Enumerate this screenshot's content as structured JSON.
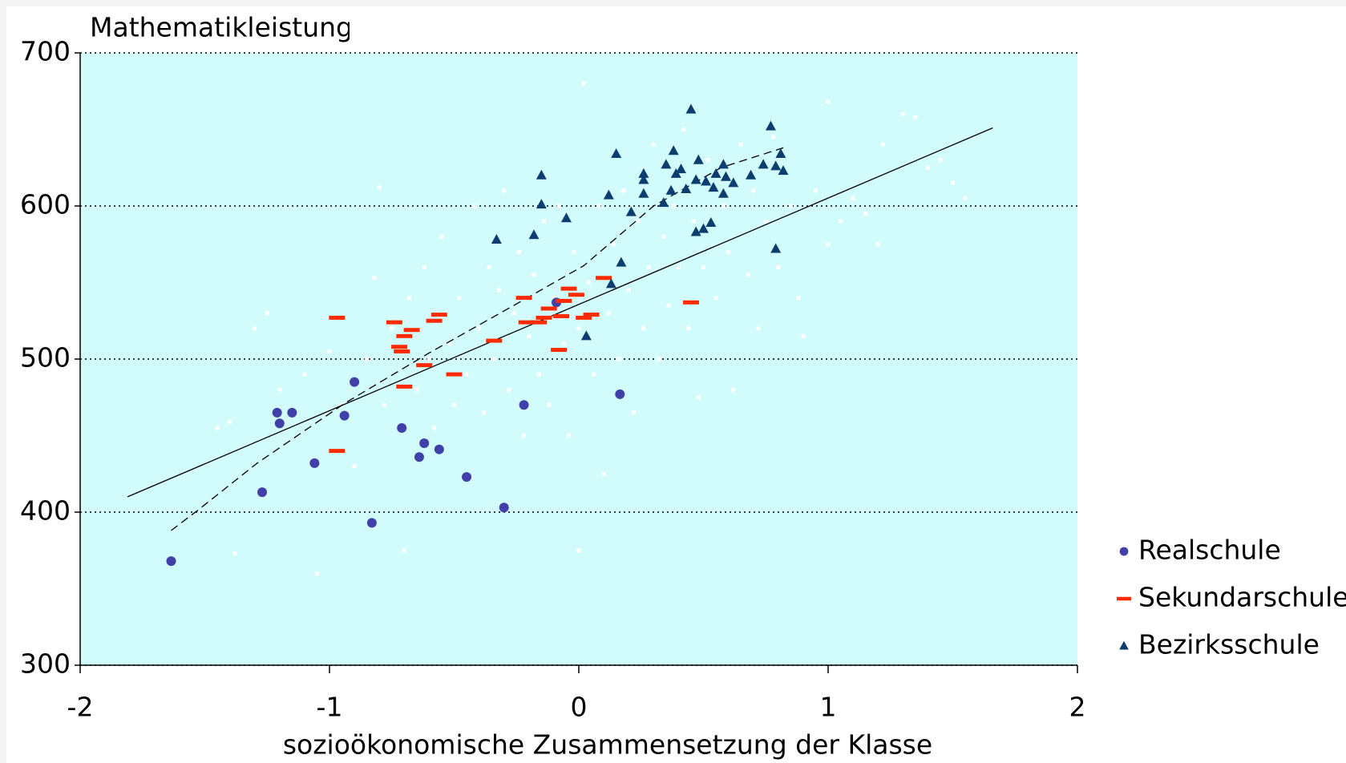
{
  "chart_data": {
    "type": "scatter",
    "title": "Mathematikleistung",
    "xlabel": "sozioökonomische Zusammensetzung der Klasse",
    "xlim": [
      -2,
      2
    ],
    "ylim": [
      300,
      700
    ],
    "xticks": [
      -2,
      -1,
      0,
      1,
      2
    ],
    "yticks": [
      300,
      400,
      500,
      600,
      700
    ],
    "grid": true,
    "legend": "right",
    "background": "#d2fbfb",
    "series": [
      {
        "name": "Realschule",
        "color": "#4040a8",
        "marker": "circle",
        "x": [
          -1.635,
          -1.27,
          -1.21,
          -1.2,
          -1.15,
          -1.06,
          -0.94,
          -0.9,
          -0.83,
          -0.71,
          -0.64,
          -0.62,
          -0.56,
          -0.45,
          -0.3,
          -0.22,
          -0.09,
          0.165
        ],
        "values": [
          368,
          413,
          465,
          458,
          465,
          432,
          463,
          485,
          393,
          455,
          436,
          445,
          441,
          423,
          403,
          470,
          537,
          477
        ]
      },
      {
        "name": "Sekundarschule",
        "color": "#ff2a00",
        "marker": "dash",
        "x": [
          -0.97,
          -0.97,
          -0.74,
          -0.72,
          -0.71,
          -0.7,
          -0.67,
          -0.7,
          -0.62,
          -0.58,
          -0.56,
          -0.5,
          -0.34,
          -0.22,
          -0.21,
          -0.16,
          -0.14,
          -0.12,
          -0.08,
          -0.07,
          -0.06,
          -0.04,
          -0.01,
          0.02,
          0.05,
          0.1,
          0.45
        ],
        "values": [
          527,
          440,
          524,
          508,
          505,
          515,
          519,
          482,
          496,
          525,
          529,
          490,
          512,
          540,
          524,
          524,
          527,
          533,
          506,
          528,
          538,
          546,
          542,
          527,
          529,
          553,
          537
        ]
      },
      {
        "name": "Bezirksschule",
        "color": "#0b3d6e",
        "marker": "triangle",
        "x": [
          -0.33,
          -0.18,
          -0.15,
          -0.15,
          -0.05,
          0.03,
          0.12,
          0.13,
          0.15,
          0.17,
          0.21,
          0.26,
          0.26,
          0.26,
          0.34,
          0.35,
          0.37,
          0.38,
          0.39,
          0.41,
          0.43,
          0.45,
          0.47,
          0.47,
          0.48,
          0.5,
          0.51,
          0.53,
          0.54,
          0.55,
          0.58,
          0.58,
          0.59,
          0.62,
          0.69,
          0.74,
          0.77,
          0.79,
          0.79,
          0.81,
          0.82
        ],
        "values": [
          578,
          581,
          601,
          620,
          592,
          515,
          607,
          549,
          634,
          563,
          596,
          608,
          617,
          621,
          602,
          627,
          610,
          636,
          621,
          624,
          611,
          663,
          617,
          583,
          630,
          585,
          616,
          589,
          612,
          621,
          627,
          608,
          619,
          615,
          620,
          627,
          652,
          572,
          626,
          634,
          623
        ]
      },
      {
        "color": "#ffffff",
        "marker": "square",
        "x": [
          -1.45,
          -1.4,
          -1.38,
          -1.3,
          -1.25,
          -1.2,
          -1.1,
          -1.05,
          -1.0,
          -0.95,
          -0.9,
          -0.85,
          -0.82,
          -0.8,
          -0.78,
          -0.75,
          -0.7,
          -0.68,
          -0.65,
          -0.62,
          -0.6,
          -0.58,
          -0.55,
          -0.52,
          -0.5,
          -0.48,
          -0.45,
          -0.42,
          -0.4,
          -0.38,
          -0.36,
          -0.34,
          -0.32,
          -0.3,
          -0.28,
          -0.26,
          -0.24,
          -0.22,
          -0.2,
          -0.18,
          -0.16,
          -0.14,
          -0.12,
          -0.1,
          -0.08,
          -0.06,
          -0.04,
          -0.02,
          0.0,
          0.0,
          0.02,
          0.04,
          0.06,
          0.08,
          0.1,
          0.12,
          0.14,
          0.16,
          0.18,
          0.2,
          0.22,
          0.24,
          0.26,
          0.28,
          0.3,
          0.32,
          0.34,
          0.36,
          0.38,
          0.4,
          0.42,
          0.44,
          0.46,
          0.48,
          0.5,
          0.52,
          0.55,
          0.58,
          0.6,
          0.62,
          0.65,
          0.68,
          0.7,
          0.72,
          0.75,
          0.78,
          0.8,
          0.85,
          0.88,
          0.9,
          0.95,
          1.0,
          1.0,
          1.05,
          1.1,
          1.15,
          1.2,
          1.22,
          1.3,
          1.35,
          1.4,
          1.45,
          1.5,
          1.55
        ],
        "values": [
          455,
          459,
          373,
          520,
          530,
          480,
          490,
          360,
          505,
          470,
          430,
          500,
          553,
          612,
          470,
          520,
          375,
          540,
          480,
          560,
          500,
          455,
          580,
          510,
          470,
          540,
          490,
          600,
          520,
          465,
          560,
          500,
          545,
          610,
          480,
          530,
          570,
          450,
          515,
          555,
          490,
          590,
          470,
          540,
          600,
          510,
          450,
          570,
          520,
          375,
          680,
          550,
          490,
          600,
          425,
          530,
          575,
          500,
          610,
          545,
          465,
          590,
          520,
          560,
          640,
          500,
          580,
          535,
          600,
          560,
          650,
          520,
          590,
          475,
          560,
          630,
          540,
          600,
          570,
          480,
          640,
          555,
          610,
          520,
          590,
          645,
          560,
          600,
          540,
          515,
          610,
          668,
          575,
          590,
          605,
          595,
          575,
          640,
          660,
          658,
          625,
          630,
          615,
          605
        ]
      },
      {
        "color": "#000000",
        "line": "solid",
        "x": [
          -1.81,
          1.66
        ],
        "values": [
          410,
          651
        ]
      },
      {
        "color": "#000000",
        "line": "dashed",
        "x": [
          -1.635,
          -1.53,
          -1.29,
          -0.94,
          -0.6,
          -0.25,
          0.02,
          0.3,
          0.57,
          0.82
        ],
        "values": [
          388,
          401,
          432,
          471,
          504,
          536,
          561,
          600,
          625,
          638
        ]
      }
    ]
  }
}
